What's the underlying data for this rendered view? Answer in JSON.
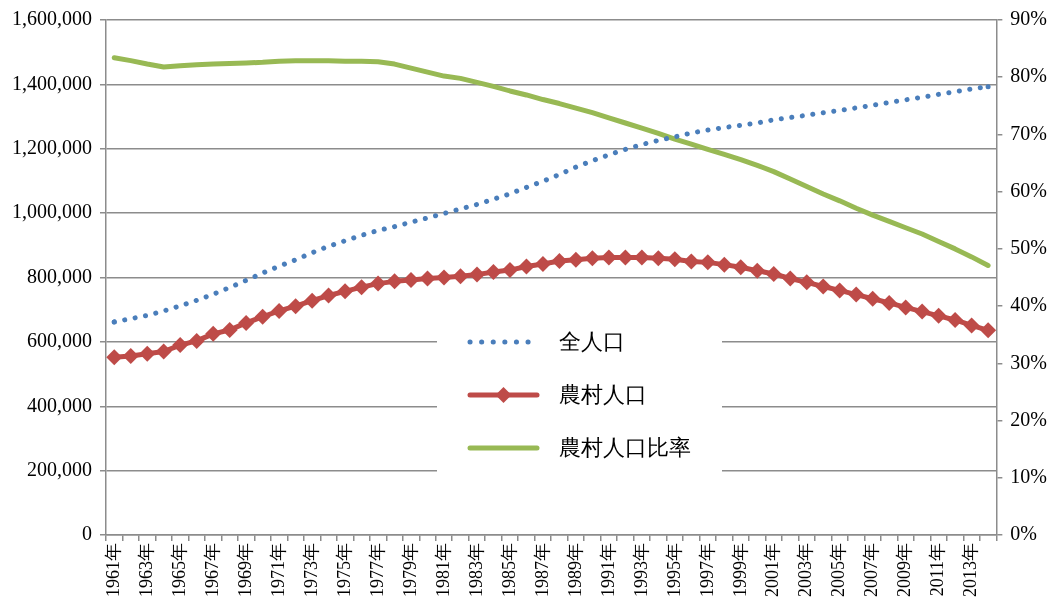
{
  "chart_data": {
    "type": "line",
    "categories": [
      "1961年",
      null,
      "1963年",
      null,
      "1965年",
      null,
      "1967年",
      null,
      "1969年",
      null,
      "1971年",
      null,
      "1973年",
      null,
      "1975年",
      null,
      "1977年",
      null,
      "1979年",
      null,
      "1981年",
      null,
      "1983年",
      null,
      "1985年",
      null,
      "1987年",
      null,
      "1989年",
      null,
      "1991年",
      null,
      "1993年",
      null,
      "1995年",
      null,
      "1997年",
      null,
      "1999年",
      null,
      "2001年",
      null,
      "2003年",
      null,
      "2005年",
      null,
      "2007年",
      null,
      "2009年",
      null,
      "2011年",
      null,
      "2013年",
      null
    ],
    "series": [
      {
        "name": "全人口",
        "color": "#4a7ebb",
        "line_style": "dotted",
        "marker": "none",
        "values": [
          662000,
          672000,
          682000,
          696000,
          712000,
          729000,
          748000,
          769000,
          791000,
          814000,
          835000,
          855000,
          877000,
          897000,
          914000,
          931000,
          946000,
          958000,
          972000,
          985000,
          999000,
          1013000,
          1027000,
          1043000,
          1060000,
          1080000,
          1099000,
          1120000,
          1143000,
          1163000,
          1181000,
          1198000,
          1213000,
          1226000,
          1237000,
          1249000,
          1258000,
          1266000,
          1273000,
          1280000,
          1290000,
          1297000,
          1304000,
          1312000,
          1319000,
          1327000,
          1335000,
          1344000,
          1352000,
          1360000,
          1369000,
          1377000,
          1386000,
          1393000
        ]
      },
      {
        "name": "農村人口",
        "color": "#be4b48",
        "line_style": "solid",
        "marker": "diamond",
        "values": [
          552000,
          556000,
          563000,
          570000,
          590000,
          603000,
          625000,
          637000,
          659000,
          678000,
          696000,
          711000,
          728000,
          744000,
          757000,
          770000,
          781000,
          788000,
          792000,
          797000,
          800000,
          804000,
          809000,
          817000,
          823000,
          834000,
          842000,
          851000,
          855000,
          860000,
          862000,
          862000,
          862000,
          860000,
          857000,
          850000,
          847000,
          840000,
          832000,
          821000,
          811000,
          797000,
          785000,
          772000,
          760000,
          747000,
          734000,
          721000,
          707000,
          694000,
          681000,
          668000,
          651000,
          636000
        ]
      },
      {
        "name": "農村人口比率",
        "color": "#98b954",
        "line_style": "solid",
        "marker": "none",
        "axis": "y2",
        "values": [
          83.4,
          82.9,
          82.3,
          81.8,
          82.0,
          82.2,
          82.3,
          82.4,
          82.5,
          82.6,
          82.8,
          82.9,
          82.9,
          82.9,
          82.8,
          82.8,
          82.7,
          82.3,
          81.6,
          80.9,
          80.2,
          79.8,
          79.1,
          78.4,
          77.6,
          76.9,
          76.1,
          75.4,
          74.6,
          73.8,
          72.9,
          72.0,
          71.1,
          70.2,
          69.2,
          68.3,
          67.4,
          66.5,
          65.6,
          64.6,
          63.5,
          62.2,
          60.9,
          59.6,
          58.4,
          57.1,
          55.9,
          54.8,
          53.7,
          52.6,
          51.3,
          50.0,
          48.6,
          47.1
        ]
      }
    ],
    "ylim": [
      0,
      1600000
    ],
    "yticks": [
      0,
      {
        "value": 200000,
        "label": "200,000"
      },
      {
        "value": 400000,
        "label": "400,000"
      },
      {
        "value": 600000,
        "label": "600,000"
      },
      {
        "value": 800000,
        "label": "800,000"
      },
      {
        "value": 1000000,
        "label": "1,000,000"
      },
      {
        "value": 1200000,
        "label": "1,200,000"
      },
      {
        "value": 1400000,
        "label": "1,400,000"
      },
      {
        "value": 1600000,
        "label": "1,600,000"
      }
    ],
    "y2lim": [
      0,
      90
    ],
    "y2ticks": [
      {
        "value": 0,
        "label": "0%"
      },
      {
        "value": 10,
        "label": "10%"
      },
      {
        "value": 20,
        "label": "20%"
      },
      {
        "value": 30,
        "label": "30%"
      },
      {
        "value": 40,
        "label": "40%"
      },
      {
        "value": 50,
        "label": "50%"
      },
      {
        "value": 60,
        "label": "60%"
      },
      {
        "value": 70,
        "label": "70%"
      },
      {
        "value": 80,
        "label": "80%"
      },
      {
        "value": 90,
        "label": "90%"
      }
    ],
    "grid": "y",
    "legend": "center"
  }
}
